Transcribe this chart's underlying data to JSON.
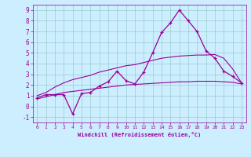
{
  "x": [
    0,
    1,
    2,
    3,
    4,
    5,
    6,
    7,
    8,
    9,
    10,
    11,
    12,
    13,
    14,
    15,
    16,
    17,
    18,
    19,
    20,
    21,
    22,
    23
  ],
  "y_main": [
    0.8,
    1.1,
    1.1,
    1.1,
    -0.7,
    1.2,
    1.3,
    1.9,
    2.3,
    3.3,
    2.4,
    2.1,
    3.2,
    5.0,
    6.9,
    7.8,
    9.0,
    8.0,
    7.0,
    5.2,
    4.5,
    3.3,
    2.8,
    2.2
  ],
  "y_upper": [
    1.0,
    1.3,
    1.8,
    2.2,
    2.5,
    2.7,
    2.9,
    3.2,
    3.4,
    3.6,
    3.8,
    3.9,
    4.1,
    4.3,
    4.5,
    4.6,
    4.7,
    4.75,
    4.8,
    4.8,
    4.85,
    4.5,
    3.5,
    2.2
  ],
  "y_lower": [
    0.7,
    0.9,
    1.1,
    1.3,
    1.4,
    1.5,
    1.6,
    1.7,
    1.8,
    1.9,
    2.0,
    2.05,
    2.1,
    2.15,
    2.2,
    2.25,
    2.3,
    2.3,
    2.35,
    2.35,
    2.35,
    2.3,
    2.25,
    2.1
  ],
  "line_color": "#990099",
  "bg_color": "#cceeff",
  "grid_color": "#99cccc",
  "xlabel": "Windchill (Refroidissement éolien,°C)",
  "xlim": [
    -0.5,
    23.5
  ],
  "ylim": [
    -1.5,
    9.5
  ],
  "yticks": [
    -1,
    0,
    1,
    2,
    3,
    4,
    5,
    6,
    7,
    8,
    9
  ],
  "xticks": [
    0,
    1,
    2,
    3,
    4,
    5,
    6,
    7,
    8,
    9,
    10,
    11,
    12,
    13,
    14,
    15,
    16,
    17,
    18,
    19,
    20,
    21,
    22,
    23
  ]
}
